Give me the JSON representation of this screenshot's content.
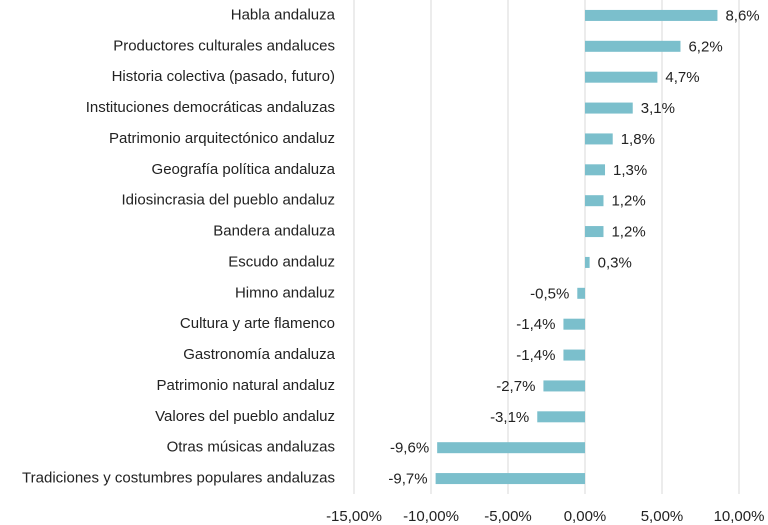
{
  "chart_data": {
    "type": "hbar",
    "categories": [
      "Habla andaluza",
      "Productores culturales andaluces",
      "Historia colectiva (pasado, futuro)",
      "Instituciones democráticas andaluzas",
      "Patrimonio arquitectónico andaluz",
      "Geografía política andaluza",
      "Idiosincrasia del pueblo andaluz",
      "Bandera andaluza",
      "Escudo andaluz",
      "Himno andaluz",
      "Cultura y arte flamenco",
      "Gastronomía andaluza",
      "Patrimonio natural andaluz",
      "Valores del pueblo andaluz",
      "Otras músicas andaluzas",
      "Tradiciones y costumbres populares andaluzas"
    ],
    "values": [
      8.6,
      6.2,
      4.7,
      3.1,
      1.8,
      1.3,
      1.2,
      1.2,
      0.3,
      -0.5,
      -1.4,
      -1.4,
      -2.7,
      -3.1,
      -9.6,
      -9.7
    ],
    "value_labels": [
      "8,6%",
      "6,2%",
      "4,7%",
      "3,1%",
      "1,8%",
      "1,3%",
      "1,2%",
      "1,2%",
      "0,3%",
      "-0,5%",
      "-1,4%",
      "-1,4%",
      "-2,7%",
      "-3,1%",
      "-9,6%",
      "-9,7%"
    ],
    "color": "#7bbfcc",
    "xlim": [
      -15,
      10
    ],
    "xticks": [
      {
        "value": -15,
        "label": "-15,00%"
      },
      {
        "value": -10,
        "label": "-10,00%"
      },
      {
        "value": -5,
        "label": "-5,00%"
      },
      {
        "value": 0,
        "label": "0,00%"
      },
      {
        "value": 5,
        "label": "5,00%"
      },
      {
        "value": 10,
        "label": "10,00%"
      }
    ],
    "grid": true
  }
}
